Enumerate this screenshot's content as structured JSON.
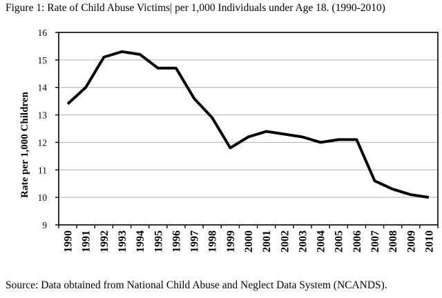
{
  "figure": {
    "title": "Figure 1: Rate of Child Abuse Victims| per 1,000 Individuals under Age 18. (1990-2010)",
    "source_note": "Source: Data obtained from National Child Abuse and Neglect Data System (NCANDS)."
  },
  "chart_data": {
    "type": "line",
    "title": "Figure 1: Rate of Child Abuse Victims per 1,000 Individuals under Age 18. (1990-2010)",
    "xlabel": "",
    "ylabel": "Rate per 1,000 Children",
    "ylim": [
      9,
      16
    ],
    "yticks": [
      9,
      10,
      11,
      12,
      13,
      14,
      15,
      16
    ],
    "grid": "horizontal-only",
    "legend_position": "none",
    "line_color": "#000000",
    "gridline_color": "#bdbdbd",
    "plot_border_color": "#000000",
    "categories": [
      "1990",
      "1991",
      "1992",
      "1993",
      "1994",
      "1995",
      "1996",
      "1997",
      "1998",
      "1999",
      "2000",
      "2001",
      "2002",
      "2003",
      "2004",
      "2005",
      "2006",
      "2007",
      "2008",
      "2009",
      "2010"
    ],
    "values": [
      13.4,
      14.0,
      15.1,
      15.3,
      15.2,
      14.7,
      14.7,
      13.6,
      12.9,
      11.8,
      12.2,
      12.4,
      12.3,
      12.2,
      12.0,
      12.1,
      12.1,
      10.6,
      10.3,
      10.1,
      10.0
    ]
  }
}
